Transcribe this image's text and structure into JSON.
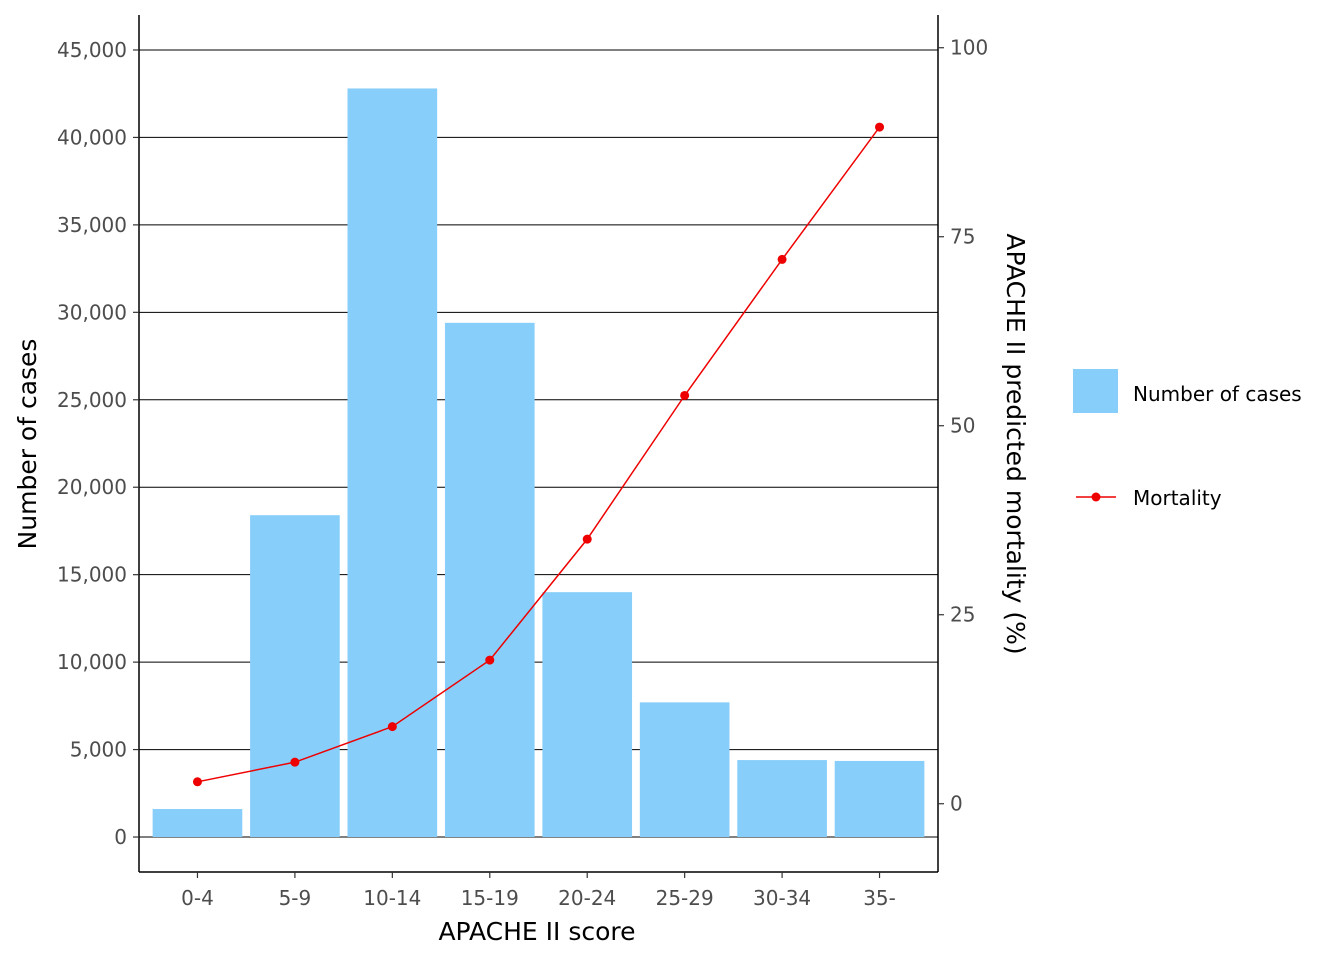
{
  "chart_data": {
    "type": "bar",
    "categories": [
      "0-4",
      "5-9",
      "10-14",
      "15-19",
      "20-24",
      "25-29",
      "30-34",
      "35-"
    ],
    "series": [
      {
        "name": "Number of cases",
        "type": "bar",
        "axis": "left",
        "color": "#87CEFA",
        "values": [
          1600,
          18400,
          42800,
          29400,
          14000,
          7700,
          4400,
          4350
        ]
      },
      {
        "name": "Mortality",
        "type": "line",
        "axis": "right",
        "color": "#EE0000",
        "values": [
          2.9,
          5.5,
          10.2,
          19.0,
          35.0,
          54.0,
          72.0,
          89.5
        ]
      }
    ],
    "xlabel": "APACHE II score",
    "ylabel": "Number of cases",
    "y2label": "APACHE II predicted mortality (%)",
    "ylim": [
      -2000,
      47000
    ],
    "y_ticks": [
      0,
      5000,
      10000,
      15000,
      20000,
      25000,
      30000,
      35000,
      40000,
      45000
    ],
    "y_tick_labels": [
      "0",
      "5,000",
      "10,000",
      "15,000",
      "20,000",
      "25,000",
      "30,000",
      "35,000",
      "40,000",
      "45,000"
    ],
    "y2lim": [
      -9.03,
      104.33
    ],
    "y2_ticks": [
      0,
      25,
      50,
      75,
      100
    ],
    "y2_tick_labels": [
      "0",
      "25",
      "50",
      "75",
      "100"
    ],
    "grid": "horizontal major",
    "legend": {
      "position": "right",
      "entries": [
        {
          "label": "Number of cases",
          "symbol": "box"
        },
        {
          "label": "Mortality",
          "symbol": "line-point"
        }
      ]
    }
  }
}
